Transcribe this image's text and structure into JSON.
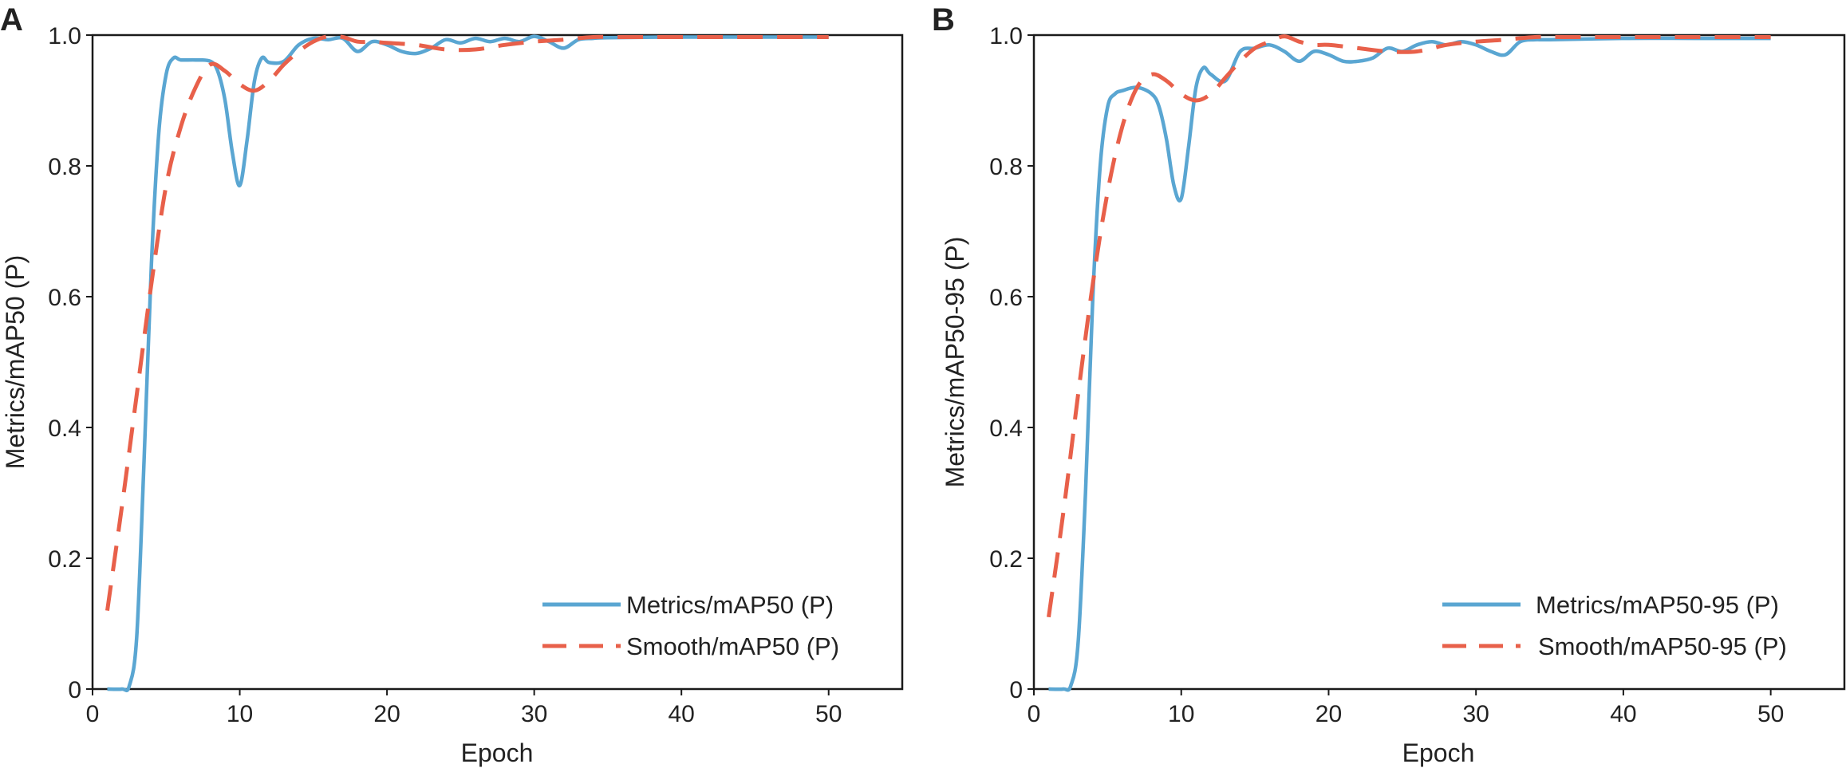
{
  "colors": {
    "metrics": "#5aa6d2",
    "smooth": "#e8604a"
  },
  "chart_data": [
    {
      "panel": "A",
      "type": "line",
      "xlabel": "Epoch",
      "ylabel": "Metrics/mAP50 (P)",
      "xlim": [
        0,
        55
      ],
      "ylim": [
        0,
        1.0
      ],
      "xticks": [
        0,
        10,
        20,
        30,
        40,
        50
      ],
      "yticks": [
        0,
        0.2,
        0.4,
        0.6,
        0.8,
        1.0
      ],
      "ytick_labels": [
        "0",
        "0.2",
        "0.4",
        "0.6",
        "0.8",
        "1.0"
      ],
      "legend_position": "bottom-right",
      "series": [
        {
          "name": "Metrics/mAP50 (P)",
          "style": "solid",
          "x": [
            1,
            2,
            2.5,
            3,
            3.5,
            4,
            4.5,
            5,
            5.5,
            6,
            7,
            8,
            8.5,
            9,
            9.5,
            10,
            10.5,
            11,
            11.5,
            12,
            13,
            14,
            15,
            16,
            17,
            18,
            19,
            20,
            21,
            22,
            23,
            24,
            25,
            26,
            27,
            28,
            29,
            30,
            31,
            32,
            33,
            34,
            35,
            40,
            45,
            50
          ],
          "y": [
            0,
            0,
            0.005,
            0.08,
            0.35,
            0.65,
            0.85,
            0.94,
            0.965,
            0.962,
            0.962,
            0.96,
            0.945,
            0.9,
            0.82,
            0.77,
            0.84,
            0.93,
            0.965,
            0.958,
            0.96,
            0.985,
            0.995,
            0.993,
            0.995,
            0.975,
            0.99,
            0.985,
            0.975,
            0.972,
            0.98,
            0.993,
            0.988,
            0.995,
            0.99,
            0.995,
            0.99,
            0.998,
            0.99,
            0.98,
            0.993,
            0.995,
            0.996,
            0.997,
            0.997,
            0.997
          ]
        },
        {
          "name": "Smooth/mAP50 (P)",
          "style": "dashed",
          "x": [
            1,
            2,
            3,
            4,
            5,
            6,
            7,
            8,
            9,
            10,
            11,
            12,
            13,
            14,
            15,
            16,
            17,
            18,
            19,
            20,
            22,
            24,
            26,
            28,
            30,
            32,
            34,
            36,
            40,
            45,
            50
          ],
          "y": [
            0.12,
            0.28,
            0.45,
            0.62,
            0.77,
            0.86,
            0.92,
            0.955,
            0.945,
            0.925,
            0.915,
            0.93,
            0.955,
            0.975,
            0.99,
            0.998,
            0.997,
            0.99,
            0.99,
            0.988,
            0.985,
            0.978,
            0.978,
            0.985,
            0.99,
            0.993,
            0.997,
            0.997,
            0.997,
            0.997,
            0.997
          ]
        }
      ]
    },
    {
      "panel": "B",
      "type": "line",
      "xlabel": "Epoch",
      "ylabel": "Metrics/mAP50-95 (P)",
      "xlim": [
        0,
        55
      ],
      "ylim": [
        0,
        1.0
      ],
      "xticks": [
        0,
        10,
        20,
        30,
        40,
        50
      ],
      "yticks": [
        0,
        0.2,
        0.4,
        0.6,
        0.8,
        1.0
      ],
      "ytick_labels": [
        "0",
        "0.2",
        "0.4",
        "0.6",
        "0.8",
        "1.0"
      ],
      "legend_position": "bottom-right",
      "series": [
        {
          "name": "Metrics/mAP50-95 (P)",
          "style": "solid",
          "x": [
            1,
            2,
            2.5,
            3,
            3.5,
            4,
            4.5,
            5,
            5.5,
            6,
            7,
            8,
            8.5,
            9,
            9.5,
            10,
            10.5,
            11,
            11.5,
            12,
            13,
            14,
            15,
            16,
            17,
            18,
            19,
            20,
            21,
            22,
            23,
            24,
            25,
            26,
            27,
            28,
            29,
            30,
            31,
            32,
            33,
            34,
            35,
            40,
            45,
            50
          ],
          "y": [
            0,
            0,
            0.005,
            0.07,
            0.3,
            0.6,
            0.8,
            0.89,
            0.91,
            0.915,
            0.92,
            0.91,
            0.89,
            0.84,
            0.77,
            0.75,
            0.83,
            0.92,
            0.95,
            0.94,
            0.93,
            0.975,
            0.98,
            0.985,
            0.975,
            0.96,
            0.975,
            0.97,
            0.96,
            0.96,
            0.965,
            0.98,
            0.975,
            0.985,
            0.99,
            0.985,
            0.99,
            0.985,
            0.975,
            0.97,
            0.99,
            0.993,
            0.993,
            0.995,
            0.995,
            0.995
          ]
        },
        {
          "name": "Smooth/mAP50-95 (P)",
          "style": "dashed",
          "x": [
            1,
            2,
            3,
            4,
            5,
            6,
            7,
            8,
            9,
            10,
            11,
            12,
            13,
            14,
            15,
            16,
            17,
            18,
            19,
            20,
            22,
            24,
            26,
            28,
            30,
            32,
            34,
            36,
            40,
            45,
            50
          ],
          "y": [
            0.11,
            0.27,
            0.45,
            0.62,
            0.76,
            0.86,
            0.92,
            0.94,
            0.93,
            0.91,
            0.9,
            0.91,
            0.935,
            0.96,
            0.98,
            0.99,
            0.998,
            0.99,
            0.985,
            0.985,
            0.98,
            0.975,
            0.975,
            0.985,
            0.99,
            0.993,
            0.997,
            0.997,
            0.997,
            0.997,
            0.997
          ]
        }
      ]
    }
  ]
}
